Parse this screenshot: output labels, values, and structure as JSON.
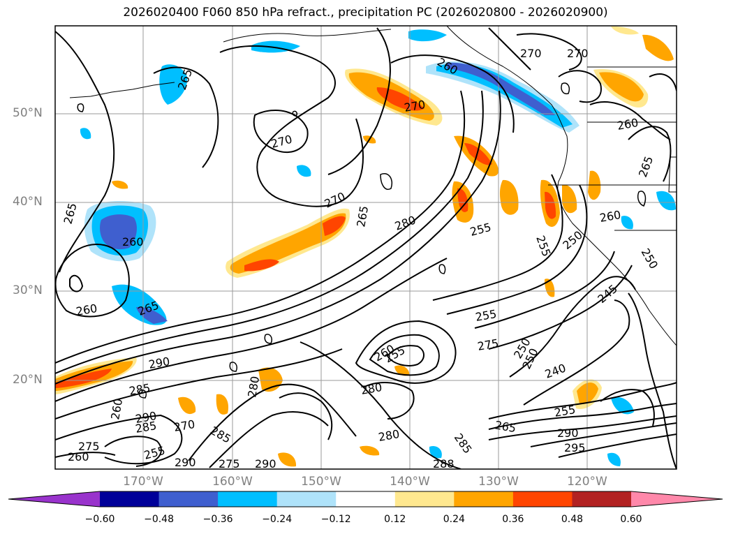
{
  "title": "2026020400 F060 850 hPa refract., precipitation PC (2026020800 - 2026020900)",
  "map": {
    "region": "North-East Pacific",
    "lat_labels": [
      "50°N",
      "40°N",
      "30°N",
      "20°N"
    ],
    "lon_labels": [
      "170°W",
      "160°W",
      "150°W",
      "140°W",
      "130°W",
      "120°W"
    ],
    "contour_labels": [
      "265",
      "270",
      "260",
      "270",
      "270",
      "270",
      "260",
      "265",
      "260",
      "265",
      "260",
      "265",
      "270",
      "280",
      "265",
      "255",
      "255",
      "250",
      "260",
      "250",
      "245",
      "255",
      "250",
      "275",
      "290",
      "285",
      "260",
      "290",
      "285",
      "270",
      "280",
      "275",
      "255",
      "250",
      "240",
      "280",
      "265",
      "285",
      "280",
      "295",
      "290",
      "255",
      "285",
      "290",
      "275",
      "260",
      "255",
      "290",
      "260",
      "288"
    ]
  },
  "colorbar": {
    "ticks": [
      "−0.60",
      "−0.48",
      "−0.36",
      "−0.24",
      "−0.12",
      "0.12",
      "0.24",
      "0.36",
      "0.48",
      "0.60"
    ],
    "colors": [
      "#9933cc",
      "#000099",
      "#3f5fcf",
      "#00bfff",
      "#afe3fa",
      "#ffffff",
      "#ffe88f",
      "#ffa500",
      "#ff4500",
      "#b22222",
      "#ff88aa"
    ]
  }
}
